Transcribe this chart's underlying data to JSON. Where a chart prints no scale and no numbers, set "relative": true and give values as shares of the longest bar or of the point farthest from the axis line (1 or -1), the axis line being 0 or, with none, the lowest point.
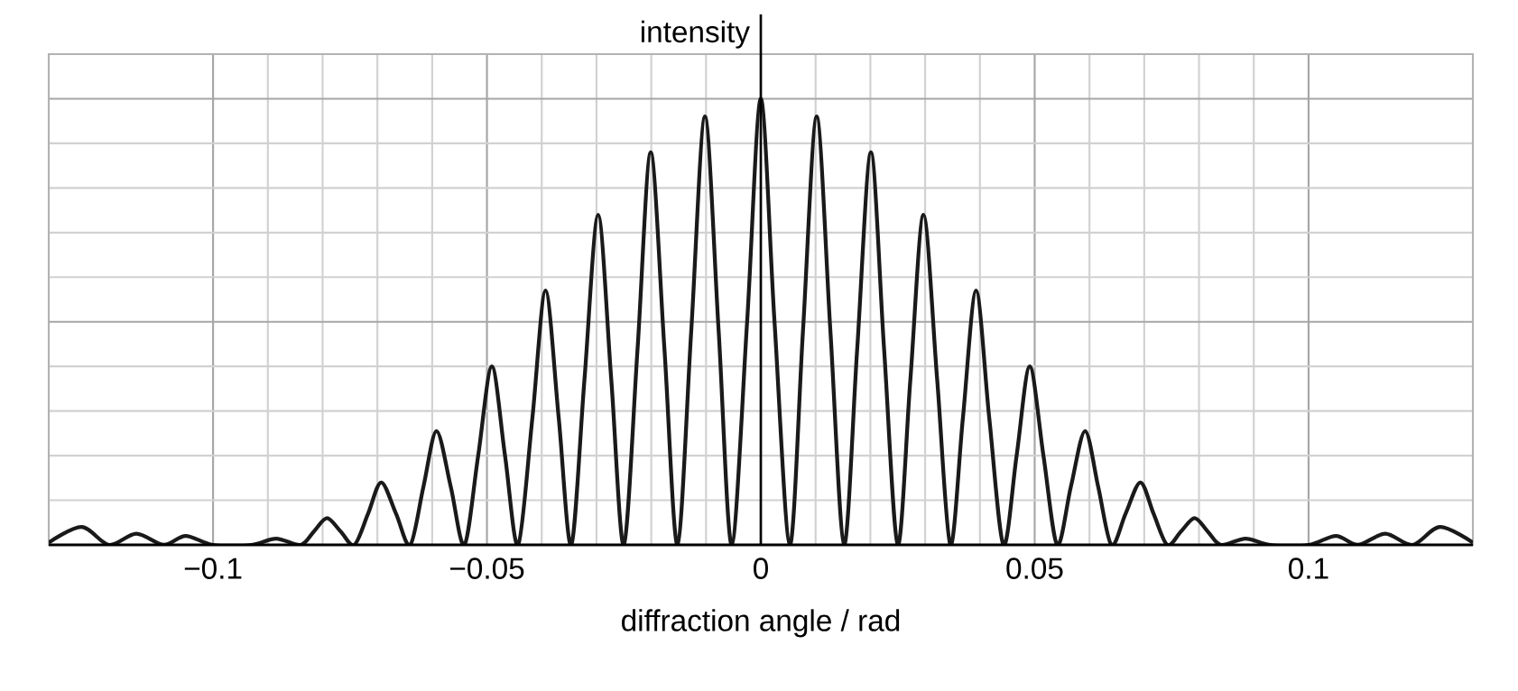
{
  "chart_data": {
    "type": "line",
    "xlabel": "diffraction angle / rad",
    "ylabel": "intensity",
    "relative": true,
    "color": "#1a1a1a",
    "grid": true,
    "x": [
      -0.13,
      -0.124,
      -0.119,
      -0.114,
      -0.109,
      -0.105,
      -0.1,
      -0.093,
      -0.0885,
      -0.084,
      -0.0816,
      -0.0792,
      -0.0767,
      -0.0742,
      -0.0717,
      -0.0693,
      -0.0666,
      -0.064,
      -0.0616,
      -0.0592,
      -0.0566,
      -0.0541,
      -0.0516,
      -0.0491,
      -0.0467,
      -0.0443,
      -0.0417,
      -0.0393,
      -0.0369,
      -0.0346,
      -0.0322,
      -0.0297,
      -0.0273,
      -0.025,
      -0.0225,
      -0.0201,
      -0.0176,
      -0.0152,
      -0.0127,
      -0.0102,
      -0.0077,
      -0.0053,
      -0.0025,
      0,
      0.0025,
      0.0053,
      0.0077,
      0.0102,
      0.0127,
      0.0152,
      0.0176,
      0.0201,
      0.0225,
      0.025,
      0.0273,
      0.0297,
      0.0322,
      0.0346,
      0.0369,
      0.0393,
      0.0417,
      0.0443,
      0.0467,
      0.0491,
      0.0516,
      0.0541,
      0.0566,
      0.0592,
      0.0616,
      0.064,
      0.0666,
      0.0693,
      0.0717,
      0.0742,
      0.0767,
      0.0792,
      0.0816,
      0.084,
      0.0885,
      0.093,
      0.1,
      0.105,
      0.109,
      0.114,
      0.119,
      0.124,
      0.13
    ],
    "values": [
      0.005,
      0.04,
      0,
      0.025,
      0,
      0.02,
      0,
      0,
      0.014,
      0,
      0.03,
      0.06,
      0.03,
      0,
      0.07,
      0.14,
      0.07,
      0,
      0.13,
      0.255,
      0.13,
      0,
      0.2,
      0.4,
      0.2,
      0,
      0.285,
      0.57,
      0.285,
      0,
      0.37,
      0.74,
      0.37,
      0,
      0.44,
      0.88,
      0.44,
      0,
      0.48,
      0.96,
      0.48,
      0,
      0.5,
      1,
      0.5,
      0,
      0.48,
      0.96,
      0.48,
      0,
      0.44,
      0.88,
      0.44,
      0,
      0.37,
      0.74,
      0.37,
      0,
      0.285,
      0.57,
      0.285,
      0,
      0.2,
      0.4,
      0.2,
      0,
      0.13,
      0.255,
      0.13,
      0,
      0.07,
      0.14,
      0.07,
      0,
      0.03,
      0.06,
      0.03,
      0,
      0.014,
      0,
      0,
      0.02,
      0,
      0.025,
      0,
      0.04,
      0.005
    ],
    "xlim": [
      -0.13,
      0.13
    ],
    "xticks": [
      {
        "value": -0.1,
        "label": "−0.1"
      },
      {
        "value": -0.05,
        "label": "−0.05"
      },
      0,
      0.05,
      0.1
    ]
  }
}
